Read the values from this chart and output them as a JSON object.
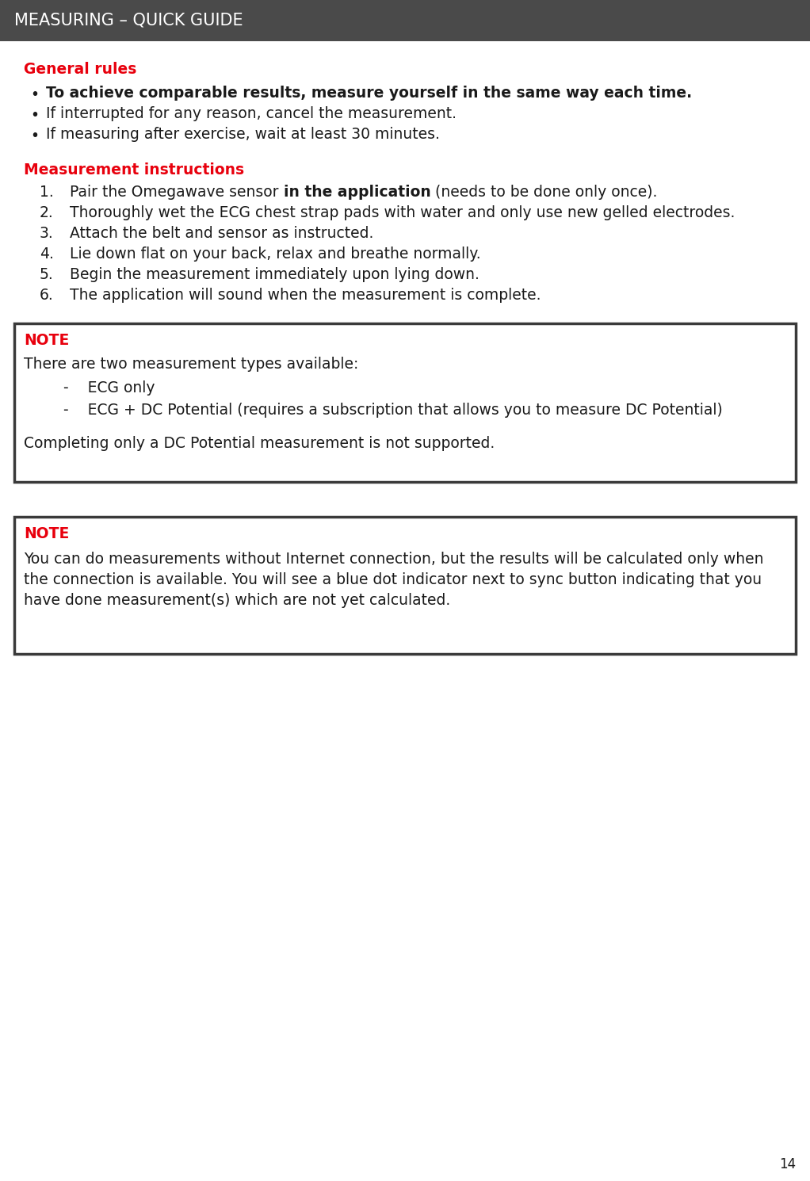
{
  "title": "MEASURING – QUICK GUIDE",
  "title_bg": "#4a4a4a",
  "title_color": "#ffffff",
  "title_fontsize": 15,
  "bg_color": "#ffffff",
  "red_color": "#e8000d",
  "black_color": "#1a1a1a",
  "border_color": "#3a3a3a",
  "page_number": "14",
  "section1_title": "General rules",
  "bullet_items": [
    {
      "bold": true,
      "text": "To achieve comparable results, measure yourself in the same way each time."
    },
    {
      "bold": false,
      "text": "If interrupted for any reason, cancel the measurement."
    },
    {
      "bold": false,
      "text": "If measuring after exercise, wait at least 30 minutes."
    }
  ],
  "section2_title": "Measurement instructions",
  "numbered_items": [
    {
      "num": "1.",
      "text_normal": "Pair the Omegawave sensor ",
      "text_bold": "in the application",
      "text_after": " (needs to be done only once)."
    },
    {
      "num": "2.",
      "text": "Thoroughly wet the ECG chest strap pads with water and only use new gelled electrodes."
    },
    {
      "num": "3.",
      "text": "Attach the belt and sensor as instructed."
    },
    {
      "num": "4.",
      "text": "Lie down flat on your back, relax and breathe normally."
    },
    {
      "num": "5.",
      "text": "Begin the measurement immediately upon lying down."
    },
    {
      "num": "6.",
      "text": "The application will sound when the measurement is complete."
    }
  ],
  "note1_label": "NOTE",
  "note1_line1": "There are two measurement types available:",
  "note1_dash1": "ECG only",
  "note1_dash2": "ECG + DC Potential (requires a subscription that allows you to measure DC Potential)",
  "note1_line2": "Completing only a DC Potential measurement is not supported.",
  "note2_label": "NOTE",
  "note2_line1": "You can do measurements without Internet connection, but the results will be calculated only when",
  "note2_line2": "the connection is available. You will see a blue dot indicator next to sync button indicating that you",
  "note2_line3": "have done measurement(s) which are not yet calculated."
}
